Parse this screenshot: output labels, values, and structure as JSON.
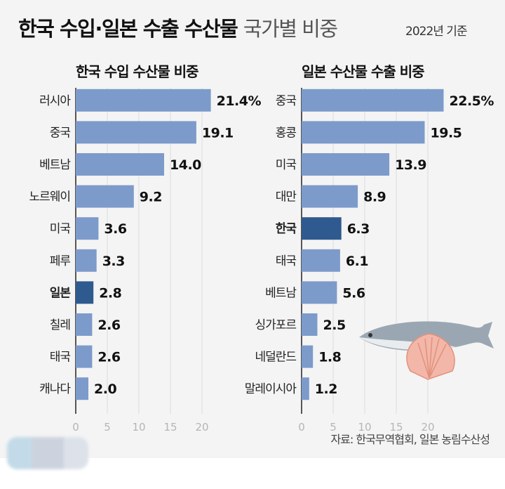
{
  "header": {
    "title_bold": "한국 수입·일본 수출 수산물",
    "title_light": "국가별 비중",
    "basis": "2022년 기준"
  },
  "source": "자료: 한국무역협회, 일본 농림수산성",
  "colors": {
    "bar": "#7c9bcb",
    "highlight": "#2f5a8f",
    "grid": "#dcdcdc",
    "axis": "#222"
  },
  "chart_data": [
    {
      "type": "bar",
      "orientation": "horizontal",
      "title": "한국 수입 수산물 비중",
      "unit": "%",
      "categories": [
        "러시아",
        "중국",
        "베트남",
        "노르웨이",
        "미국",
        "페루",
        "일본",
        "칠레",
        "태국",
        "캐나다"
      ],
      "values": [
        21.4,
        19.1,
        14.0,
        9.2,
        3.6,
        3.3,
        2.8,
        2.6,
        2.6,
        2.0
      ],
      "value_labels": [
        "21.4%",
        "19.1",
        "14.0",
        "9.2",
        "3.6",
        "3.3",
        "2.8",
        "2.6",
        "2.6",
        "2.0"
      ],
      "highlight": "일본",
      "xlim": [
        0,
        20
      ],
      "xticks": [
        "0",
        "5",
        "10",
        "15",
        "20"
      ],
      "grid": true
    },
    {
      "type": "bar",
      "orientation": "horizontal",
      "title": "일본 수산물 수출 비중",
      "unit": "%",
      "categories": [
        "중국",
        "홍콩",
        "미국",
        "대만",
        "한국",
        "태국",
        "베트남",
        "싱가포르",
        "네덜란드",
        "말레이시아"
      ],
      "values": [
        22.5,
        19.5,
        13.9,
        8.9,
        6.3,
        6.1,
        5.6,
        2.5,
        1.8,
        1.2
      ],
      "value_labels": [
        "22.5%",
        "19.5",
        "13.9",
        "8.9",
        "6.3",
        "6.1",
        "5.6",
        "2.5",
        "1.8",
        "1.2"
      ],
      "highlight": "한국",
      "xlim": [
        0,
        20
      ],
      "xticks": [
        "0",
        "5",
        "10",
        "15",
        "20"
      ],
      "grid": true
    }
  ],
  "decoration": {
    "icons": [
      "fish-icon",
      "scallop-icon"
    ]
  }
}
